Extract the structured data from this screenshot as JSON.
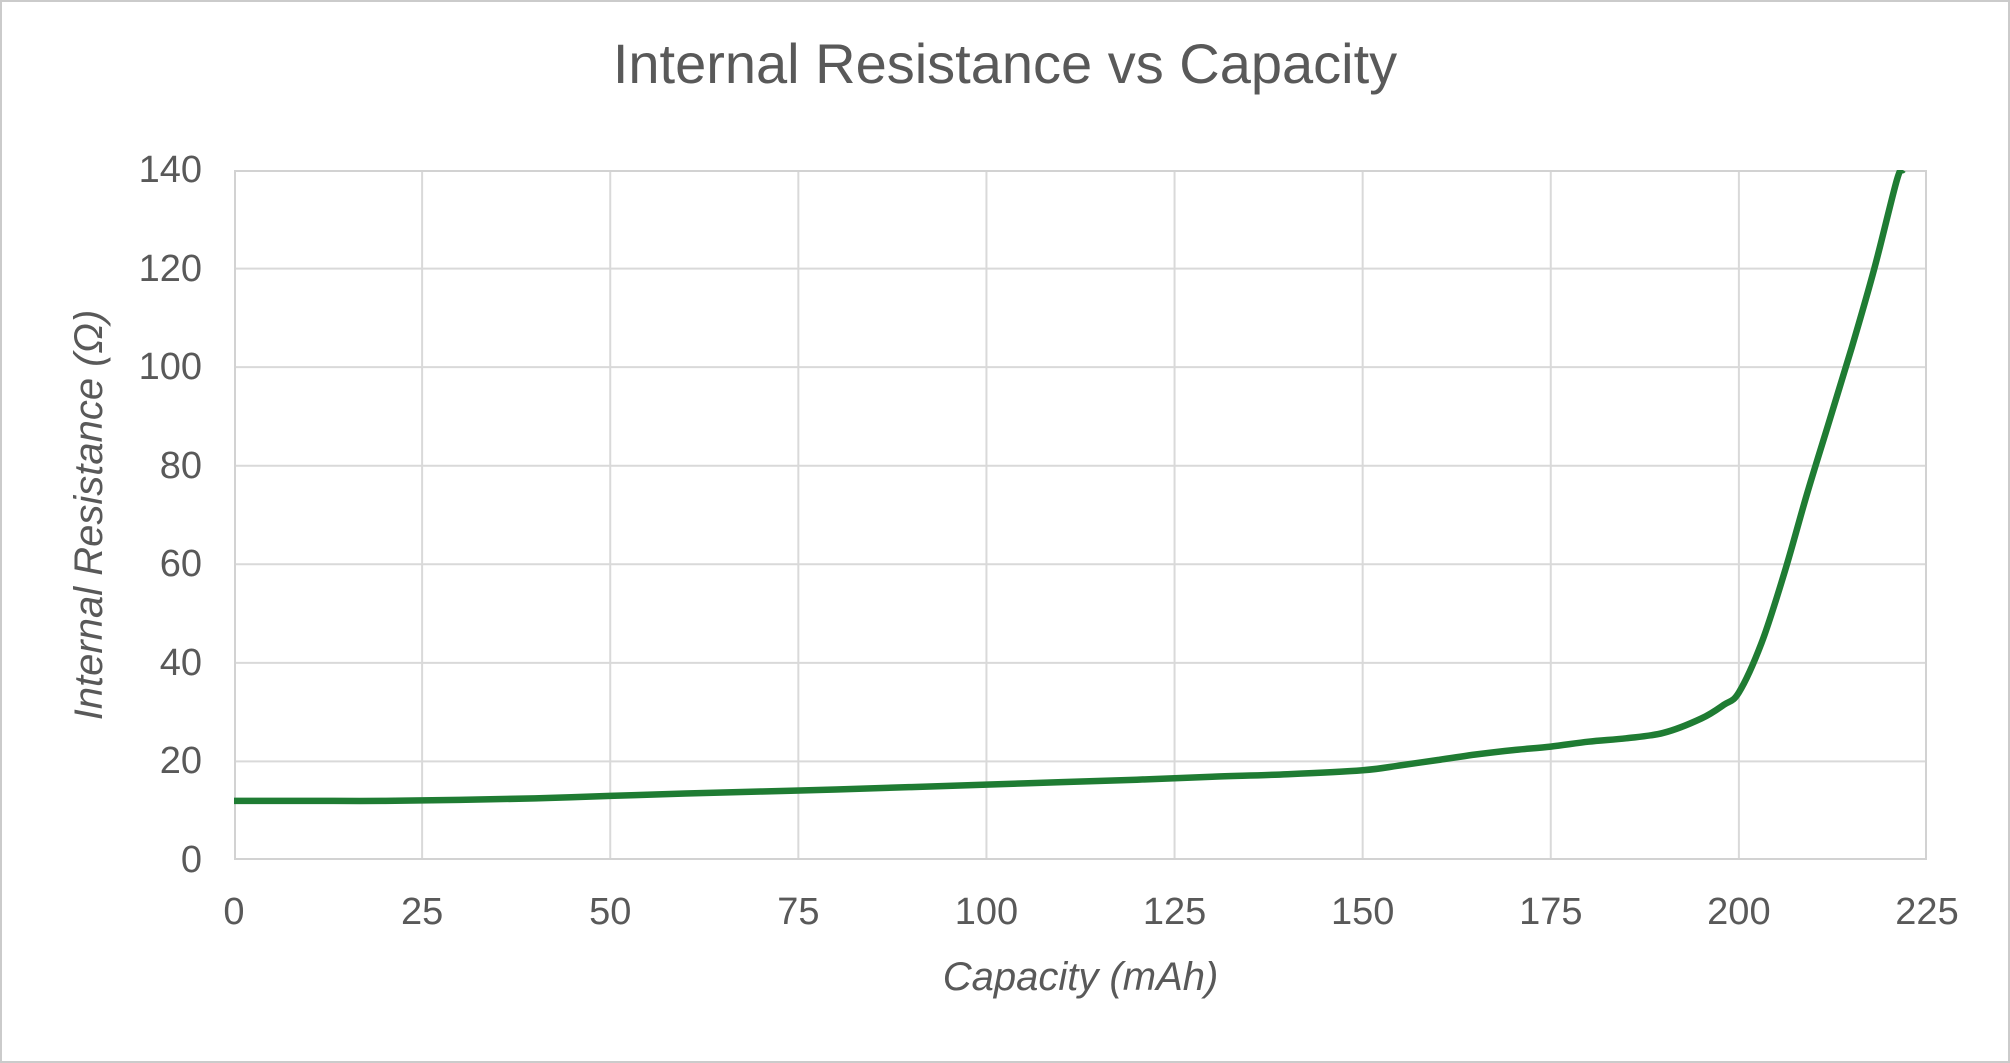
{
  "chart_data": {
    "type": "line",
    "title": "Internal Resistance vs Capacity",
    "xlabel": "Capacity (mAh)",
    "ylabel": "Internal Resistance (Ω)",
    "xlim": [
      0,
      225
    ],
    "ylim": [
      0,
      140
    ],
    "x_ticks": [
      0,
      25,
      50,
      75,
      100,
      125,
      150,
      175,
      200,
      225
    ],
    "y_ticks": [
      0,
      20,
      40,
      60,
      80,
      100,
      120,
      140
    ],
    "grid": true,
    "legend": false,
    "colors": {
      "line": "#1f7c33",
      "grid": "#d9d9d9",
      "plot_border": "#d2d2d2",
      "text": "#595959"
    },
    "series": [
      {
        "points": [
          [
            0,
            12
          ],
          [
            10,
            12
          ],
          [
            20,
            12
          ],
          [
            30,
            12.2
          ],
          [
            40,
            12.5
          ],
          [
            50,
            13
          ],
          [
            60,
            13.5
          ],
          [
            70,
            13.9
          ],
          [
            80,
            14.3
          ],
          [
            90,
            14.8
          ],
          [
            100,
            15.3
          ],
          [
            110,
            15.8
          ],
          [
            120,
            16.3
          ],
          [
            130,
            16.9
          ],
          [
            140,
            17.4
          ],
          [
            150,
            18.2
          ],
          [
            155,
            19.2
          ],
          [
            160,
            20.3
          ],
          [
            165,
            21.4
          ],
          [
            170,
            22.3
          ],
          [
            175,
            23
          ],
          [
            180,
            24
          ],
          [
            185,
            24.7
          ],
          [
            190,
            25.8
          ],
          [
            195,
            28.7
          ],
          [
            198,
            31.5
          ],
          [
            200,
            34
          ],
          [
            203,
            44
          ],
          [
            206,
            58
          ],
          [
            209,
            74
          ],
          [
            212,
            89
          ],
          [
            215,
            104
          ],
          [
            218,
            120
          ],
          [
            221,
            138
          ],
          [
            221.8,
            140
          ]
        ]
      }
    ]
  }
}
